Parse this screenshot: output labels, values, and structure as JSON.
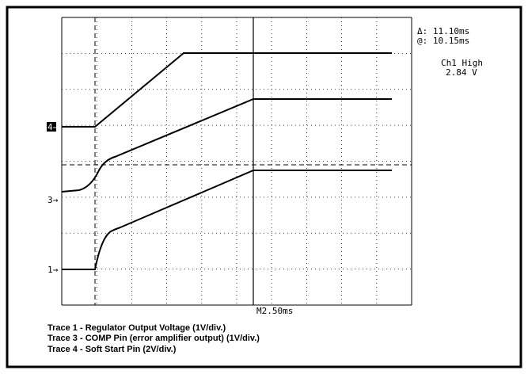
{
  "readouts": {
    "delta": "Δ: 11.10ms",
    "at": "@: 10.15ms",
    "measure_name": "Ch1 High",
    "measure_value": "2.84 V"
  },
  "markers": [
    "4→",
    "3→",
    "1→"
  ],
  "timebase": "M2.50ms",
  "captions": [
    "Trace 1 - Regulator Output Voltage (1V/div.)",
    "Trace 3 - COMP Pin (error amplifier output) (1V/div.)",
    "Trace 4 - Soft Start Pin (2V/div.)"
  ]
}
